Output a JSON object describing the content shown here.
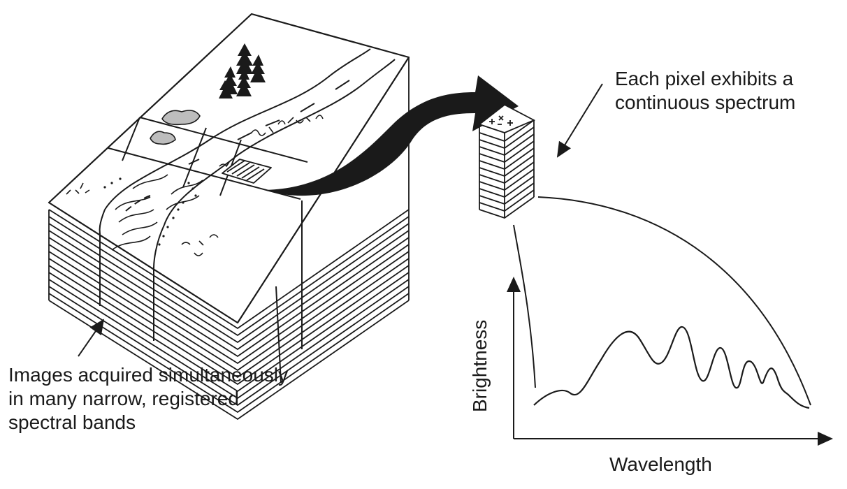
{
  "captions": {
    "left": [
      "Images acquired simultaneously",
      "in many narrow, registered",
      "spectral bands"
    ],
    "right": [
      "Each pixel exhibits a",
      "continuous spectrum"
    ]
  },
  "axes": {
    "x_label": "Wavelength",
    "y_label": "Brightness"
  },
  "pixel_stack_marks": "+ × +",
  "colors": {
    "ink": "#1a1a1a",
    "rock_fill": "#bdbdbd",
    "paper": "#ffffff"
  }
}
